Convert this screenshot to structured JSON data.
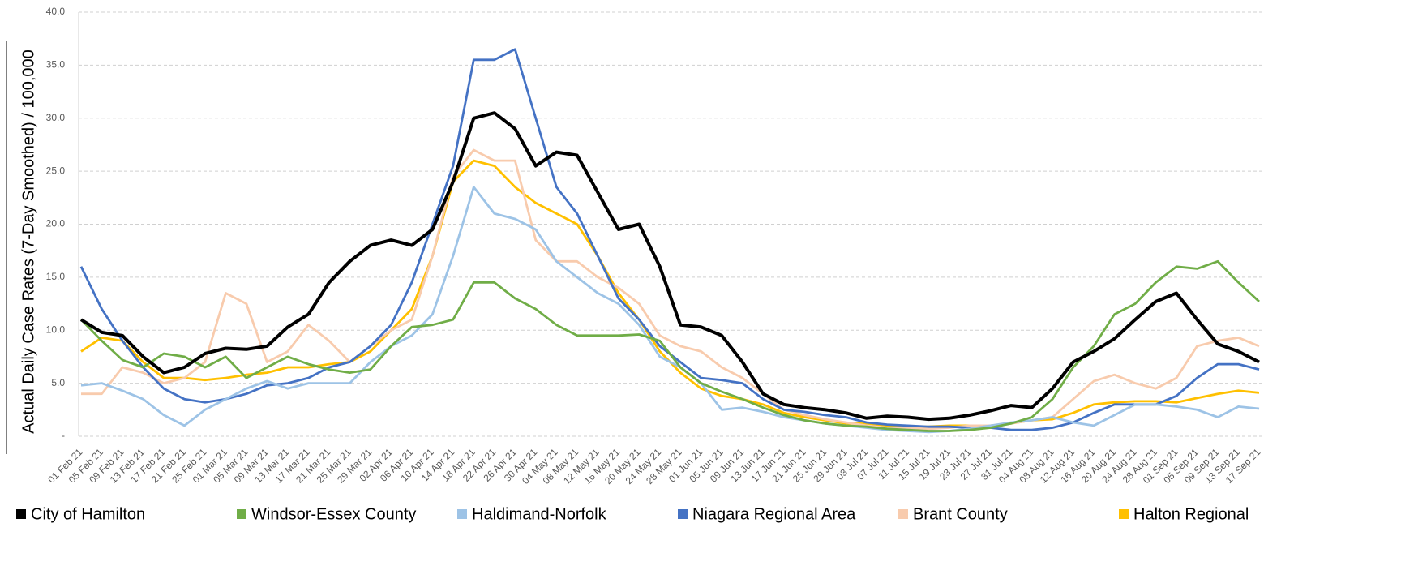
{
  "chart_data": {
    "type": "line",
    "ylabel": "Actual Daily Case Rates (7-Day Smoothed) / 100,000",
    "categories": [
      "01 Feb 21",
      "05 Feb 21",
      "09 Feb 21",
      "13 Feb 21",
      "17 Feb 21",
      "21 Feb 21",
      "25 Feb 21",
      "01 Mar 21",
      "05 Mar 21",
      "09 Mar 21",
      "13 Mar 21",
      "17 Mar 21",
      "21 Mar 21",
      "25 Mar 21",
      "29 Mar 21",
      "02 Apr 21",
      "06 Apr 21",
      "10 Apr 21",
      "14 Apr 21",
      "18 Apr 21",
      "22 Apr 21",
      "26 Apr 21",
      "30 Apr 21",
      "04 May 21",
      "08 May 21",
      "12 May 21",
      "16 May 21",
      "20 May 21",
      "24 May 21",
      "28 May 21",
      "01 Jun 21",
      "05 Jun 21",
      "09 Jun 21",
      "13 Jun 21",
      "17 Jun 21",
      "21 Jun 21",
      "25 Jun 21",
      "29 Jun 21",
      "03 Jul 21",
      "07 Jul 21",
      "11 Jul 21",
      "15 Jul 21",
      "19 Jul 21",
      "23 Jul 21",
      "27 Jul 21",
      "31 Jul 21",
      "04 Aug 21",
      "08 Aug 21",
      "12 Aug 21",
      "16 Aug 21",
      "20 Aug 21",
      "24 Aug 21",
      "28 Aug 21",
      "01 Sep 21",
      "05 Sep 21",
      "09 Sep 21",
      "13 Sep 21",
      "17 Sep 21"
    ],
    "series": [
      {
        "name": "City of Hamilton",
        "color": "#000000",
        "values": [
          11,
          9.8,
          9.5,
          7.5,
          6,
          6.5,
          7.8,
          8.3,
          8.2,
          8.5,
          10.3,
          11.5,
          14.5,
          16.5,
          18,
          18.5,
          18,
          19.5,
          24,
          30,
          30.5,
          29,
          25.5,
          26.8,
          26.5,
          23,
          19.5,
          20,
          16,
          10.5,
          10.3,
          9.5,
          7,
          4,
          3,
          2.7,
          2.5,
          2.2,
          1.7,
          1.9,
          1.8,
          1.6,
          1.7,
          2,
          2.4,
          2.9,
          2.7,
          4.5,
          7,
          8,
          9.2,
          11,
          12.7,
          13.5,
          11,
          8.7,
          8,
          7
        ]
      },
      {
        "name": "Windsor-Essex County",
        "color": "#70ad47",
        "values": [
          11,
          9,
          7.2,
          6.5,
          7.8,
          7.5,
          6.5,
          7.5,
          5.5,
          6.5,
          7.5,
          6.8,
          6.3,
          6,
          6.3,
          8.5,
          10.3,
          10.5,
          11,
          14.5,
          14.5,
          13,
          12,
          10.5,
          9.5,
          9.5,
          9.5,
          9.6,
          9,
          6.5,
          5,
          4.2,
          3.5,
          2.7,
          2,
          1.5,
          1.2,
          1,
          0.9,
          0.7,
          0.6,
          0.5,
          0.5,
          0.6,
          0.8,
          1.2,
          1.8,
          3.5,
          6.5,
          8.5,
          11.5,
          12.5,
          14.5,
          16,
          15.8,
          16.5,
          14.5,
          12.7
        ]
      },
      {
        "name": "Haldimand-Norfolk",
        "color": "#9dc3e6",
        "values": [
          4.8,
          5,
          4.3,
          3.5,
          2,
          1,
          2.5,
          3.5,
          4.5,
          5.2,
          4.5,
          5,
          5,
          5,
          7,
          8.5,
          9.5,
          11.5,
          17,
          23.5,
          21,
          20.5,
          19.5,
          16.5,
          15,
          13.5,
          12.5,
          10.5,
          7.5,
          6.5,
          5,
          2.5,
          2.7,
          2.3,
          1.8,
          1.5,
          1.2,
          1,
          0.8,
          0.6,
          0.5,
          0.4,
          0.5,
          0.7,
          1,
          1.3,
          1.5,
          1.8,
          1.3,
          1,
          2,
          3,
          3,
          2.8,
          2.5,
          1.8,
          2.8,
          2.6
        ]
      },
      {
        "name": "Niagara Regional Area",
        "color": "#4472c4",
        "values": [
          16,
          12,
          9,
          6.5,
          4.5,
          3.5,
          3.2,
          3.5,
          4,
          4.8,
          5,
          5.5,
          6.5,
          7,
          8.5,
          10.5,
          14.5,
          20,
          25.5,
          35.5,
          35.5,
          36.5,
          30,
          23.5,
          21,
          17,
          13,
          11,
          8.5,
          7,
          5.5,
          5.3,
          5,
          3.5,
          2.5,
          2.3,
          2,
          1.8,
          1.3,
          1.1,
          1,
          0.9,
          0.9,
          0.8,
          0.8,
          0.6,
          0.6,
          0.8,
          1.3,
          2.2,
          3,
          3,
          3,
          3.8,
          5.5,
          6.8,
          6.8,
          6.3
        ]
      },
      {
        "name": "Brant County",
        "color": "#f8cbad",
        "values": [
          4,
          4,
          6.5,
          6,
          5,
          5.5,
          7,
          13.5,
          12.5,
          7,
          8,
          10.5,
          9,
          7,
          8.5,
          10,
          11,
          17,
          24.5,
          27,
          26,
          26,
          18.5,
          16.5,
          16.5,
          15,
          14,
          12.5,
          9.5,
          8.5,
          8,
          6.5,
          5.5,
          4,
          2.5,
          2,
          1.6,
          1.3,
          1,
          0.8,
          0.8,
          0.7,
          0.8,
          1,
          1,
          1.2,
          1.5,
          1.8,
          3.5,
          5.2,
          5.8,
          5,
          4.5,
          5.5,
          8.5,
          9,
          9.3,
          8.5
        ]
      },
      {
        "name": "Halton Regional",
        "color": "#ffc000",
        "values": [
          8,
          9.3,
          9,
          7,
          5.5,
          5.5,
          5.3,
          5.5,
          5.8,
          6,
          6.5,
          6.5,
          6.8,
          7,
          8,
          10,
          12,
          17,
          24,
          26,
          25.5,
          23.5,
          22,
          21,
          20,
          17,
          13.5,
          11,
          8,
          6,
          4.5,
          3.8,
          3.5,
          3,
          2.2,
          1.8,
          1.5,
          1.2,
          1.2,
          1,
          0.9,
          0.9,
          1,
          1,
          1,
          1.2,
          1.5,
          1.6,
          2.2,
          3,
          3.2,
          3.3,
          3.3,
          3.2,
          3.6,
          4,
          4.3,
          4.1
        ]
      }
    ],
    "ylim": [
      0,
      40
    ],
    "yticks": [
      {
        "value": 0,
        "label": "-"
      },
      {
        "value": 5,
        "label": "5.0"
      },
      {
        "value": 10,
        "label": "10.0"
      },
      {
        "value": 15,
        "label": "15.0"
      },
      {
        "value": 20,
        "label": "20.0"
      },
      {
        "value": 25,
        "label": "25.0"
      },
      {
        "value": 30,
        "label": "30.0"
      },
      {
        "value": 35,
        "label": "35.0"
      },
      {
        "value": 40,
        "label": "40.0"
      }
    ],
    "grid": true,
    "legend": "bottom"
  }
}
